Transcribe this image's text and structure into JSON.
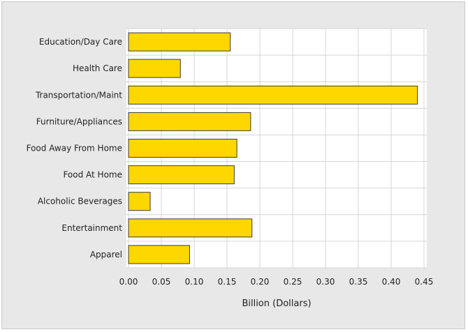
{
  "chart_data": {
    "type": "bar",
    "orientation": "horizontal",
    "categories": [
      "Education/Day Care",
      "Health Care",
      "Transportation/Maint",
      "Furniture/Appliances",
      "Food Away From Home",
      "Food At Home",
      "Alcoholic Beverages",
      "Entertainment",
      "Apparel"
    ],
    "values": [
      0.155,
      0.079,
      0.44,
      0.186,
      0.165,
      0.161,
      0.033,
      0.188,
      0.093
    ],
    "xlabel": "Billion (Dollars)",
    "ylabel": "",
    "xlim": [
      0,
      0.45
    ],
    "xticks": [
      "0.00",
      "0.05",
      "0.10",
      "0.15",
      "0.20",
      "0.25",
      "0.30",
      "0.35",
      "0.40",
      "0.45"
    ],
    "grid": true,
    "legend": "none",
    "colors": {
      "bar_fill": "#ffd700",
      "bar_stroke": "#3a3a3a",
      "plot_bg": "#ffffff",
      "panel_bg": "#e8e8e8",
      "grid": "#d6d6d6"
    }
  }
}
